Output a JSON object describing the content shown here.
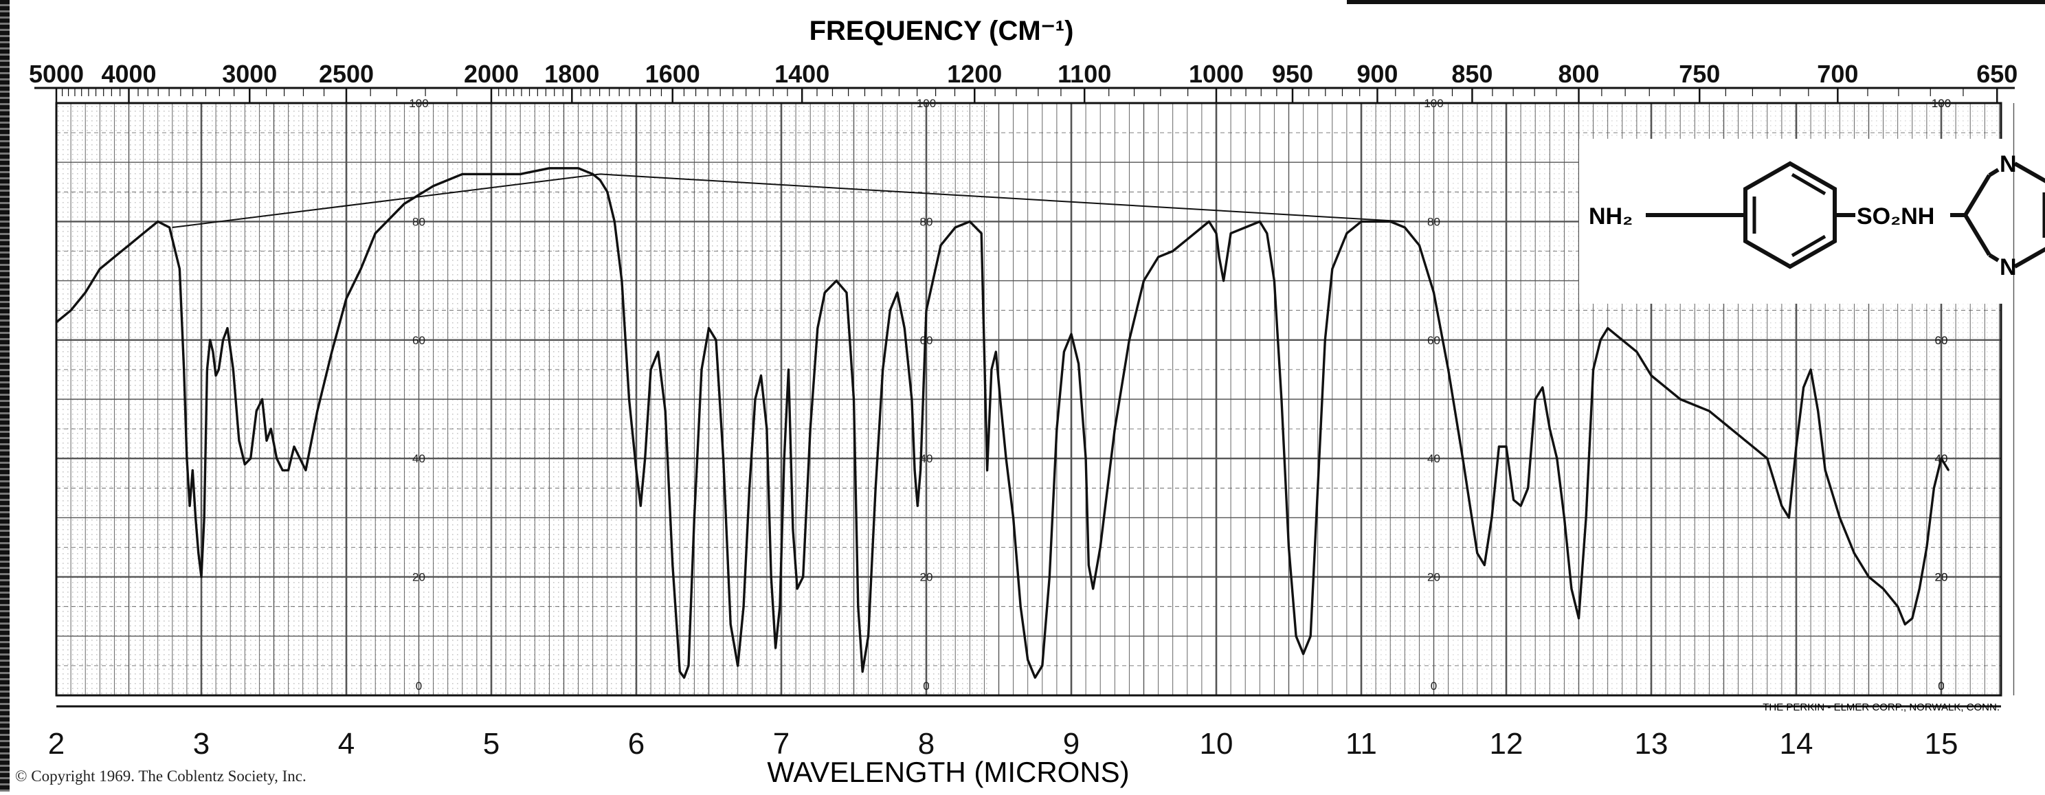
{
  "chart_data": {
    "type": "line",
    "title": "",
    "top_axis_label": "FREQUENCY (CM⁻¹)",
    "xlabel": "WAVELENGTH (MICRONS)",
    "ylabel": "",
    "xlim": [
      2,
      15.5
    ],
    "ylim": [
      0,
      100
    ],
    "x_ticks": [
      "2",
      "3",
      "4",
      "5",
      "6",
      "7",
      "8",
      "9",
      "10",
      "11",
      "12",
      "13",
      "14",
      "15"
    ],
    "top_ticks": [
      {
        "label": "5000",
        "micron": 2.0
      },
      {
        "label": "4000",
        "micron": 2.5
      },
      {
        "label": "3000",
        "micron": 3.333
      },
      {
        "label": "2500",
        "micron": 4.0
      },
      {
        "label": "2000",
        "micron": 5.0
      },
      {
        "label": "1800",
        "micron": 5.556
      },
      {
        "label": "1600",
        "micron": 6.25
      },
      {
        "label": "1400",
        "micron": 7.143
      },
      {
        "label": "1200",
        "micron": 8.333
      },
      {
        "label": "1100",
        "micron": 9.091
      },
      {
        "label": "1000",
        "micron": 10.0
      },
      {
        "label": "950",
        "micron": 10.526
      },
      {
        "label": "900",
        "micron": 11.111
      },
      {
        "label": "850",
        "micron": 11.765
      },
      {
        "label": "800",
        "micron": 12.5
      },
      {
        "label": "750",
        "micron": 13.333
      },
      {
        "label": "700",
        "micron": 14.286
      },
      {
        "label": "650",
        "micron": 15.385
      }
    ],
    "y_scale_labels": [
      "100",
      "80",
      "60",
      "40",
      "20",
      "0"
    ],
    "y_scale_positions": [
      4.5,
      8,
      11.5,
      15
    ],
    "grid": true,
    "baseline": {
      "x": [
        2.8,
        5.75,
        11.3
      ],
      "y": [
        79,
        88,
        80
      ]
    },
    "series": [
      {
        "x": [
          2.0,
          2.1,
          2.2,
          2.3,
          2.4,
          2.5,
          2.6,
          2.7,
          2.78,
          2.85,
          2.88,
          2.9,
          2.92,
          2.94,
          2.96,
          2.98,
          3.0,
          3.02,
          3.04,
          3.06,
          3.08,
          3.1,
          3.12,
          3.15,
          3.18,
          3.22,
          3.26,
          3.3,
          3.34,
          3.38,
          3.42,
          3.45,
          3.48,
          3.52,
          3.56,
          3.6,
          3.64,
          3.68,
          3.72,
          3.8,
          3.9,
          4.0,
          4.1,
          4.2,
          4.4,
          4.6,
          4.8,
          5.0,
          5.2,
          5.4,
          5.6,
          5.7,
          5.75,
          5.8,
          5.85,
          5.9,
          5.95,
          6.0,
          6.03,
          6.06,
          6.1,
          6.15,
          6.2,
          6.25,
          6.3,
          6.33,
          6.36,
          6.4,
          6.45,
          6.5,
          6.55,
          6.6,
          6.65,
          6.7,
          6.74,
          6.78,
          6.82,
          6.86,
          6.9,
          6.93,
          6.96,
          6.99,
          7.02,
          7.05,
          7.08,
          7.11,
          7.15,
          7.2,
          7.25,
          7.3,
          7.38,
          7.45,
          7.5,
          7.53,
          7.56,
          7.6,
          7.65,
          7.7,
          7.75,
          7.8,
          7.85,
          7.9,
          7.92,
          7.94,
          7.96,
          8.0,
          8.1,
          8.2,
          8.3,
          8.38,
          8.42,
          8.45,
          8.48,
          8.51,
          8.55,
          8.6,
          8.65,
          8.7,
          8.75,
          8.8,
          8.85,
          8.9,
          8.95,
          9.0,
          9.05,
          9.1,
          9.12,
          9.15,
          9.2,
          9.3,
          9.4,
          9.5,
          9.6,
          9.7,
          9.8,
          9.9,
          9.95,
          10.0,
          10.02,
          10.05,
          10.1,
          10.2,
          10.3,
          10.35,
          10.4,
          10.45,
          10.5,
          10.55,
          10.6,
          10.65,
          10.7,
          10.75,
          10.8,
          10.9,
          11.0,
          11.1,
          11.2,
          11.3,
          11.4,
          11.5,
          11.6,
          11.7,
          11.8,
          11.85,
          11.9,
          11.95,
          12.0,
          12.05,
          12.1,
          12.15,
          12.2,
          12.25,
          12.3,
          12.35,
          12.4,
          12.45,
          12.5,
          12.55,
          12.6,
          12.65,
          12.7,
          12.8,
          12.9,
          13.0,
          13.2,
          13.4,
          13.6,
          13.8,
          13.9,
          13.95,
          14.0,
          14.05,
          14.1,
          14.15,
          14.2,
          14.3,
          14.4,
          14.5,
          14.6,
          14.7,
          14.75,
          14.8,
          14.85,
          14.9,
          14.95,
          15.0,
          15.05
        ],
        "y": [
          63,
          65,
          68,
          72,
          74,
          76,
          78,
          80,
          79,
          72,
          55,
          40,
          32,
          38,
          30,
          24,
          20,
          30,
          55,
          60,
          58,
          54,
          55,
          60,
          62,
          55,
          43,
          39,
          40,
          48,
          50,
          43,
          45,
          40,
          38,
          38,
          42,
          40,
          38,
          48,
          58,
          67,
          72,
          78,
          83,
          86,
          88,
          88,
          88,
          89,
          89,
          88,
          87,
          85,
          80,
          70,
          50,
          38,
          32,
          40,
          55,
          58,
          48,
          22,
          4,
          3,
          5,
          30,
          55,
          62,
          60,
          40,
          12,
          5,
          15,
          35,
          50,
          54,
          45,
          20,
          8,
          15,
          40,
          55,
          28,
          18,
          20,
          45,
          62,
          68,
          70,
          68,
          50,
          15,
          4,
          10,
          35,
          55,
          65,
          68,
          62,
          50,
          38,
          32,
          38,
          65,
          76,
          79,
          80,
          78,
          38,
          55,
          58,
          50,
          40,
          30,
          15,
          6,
          3,
          5,
          20,
          45,
          58,
          61,
          56,
          40,
          22,
          18,
          25,
          45,
          60,
          70,
          74,
          75,
          77,
          79,
          80,
          78,
          74,
          70,
          78,
          79,
          80,
          78,
          70,
          50,
          25,
          10,
          7,
          10,
          35,
          60,
          72,
          78,
          80,
          80,
          80,
          79,
          76,
          68,
          55,
          40,
          24,
          22,
          30,
          42,
          42,
          33,
          32,
          35,
          50,
          52,
          45,
          40,
          30,
          18,
          13,
          30,
          55,
          60,
          62,
          60,
          58,
          54,
          50,
          48,
          44,
          40,
          32,
          30,
          42,
          52,
          55,
          48,
          38,
          30,
          24,
          20,
          18,
          15,
          12,
          13,
          18,
          25,
          35,
          40,
          38
        ]
      }
    ]
  },
  "structure": {
    "labels": [
      "NH₂",
      "SO₂NH",
      "N",
      "N"
    ]
  },
  "footer": {
    "copyright": "© Copyright 1969. The Coblentz Society, Inc.",
    "maker": "THE PERKIN - ELMER CORP., NORWALK, CONN."
  },
  "colors": {
    "grid": "#555555",
    "trace": "#111111",
    "dots": "#9a9a9a"
  }
}
